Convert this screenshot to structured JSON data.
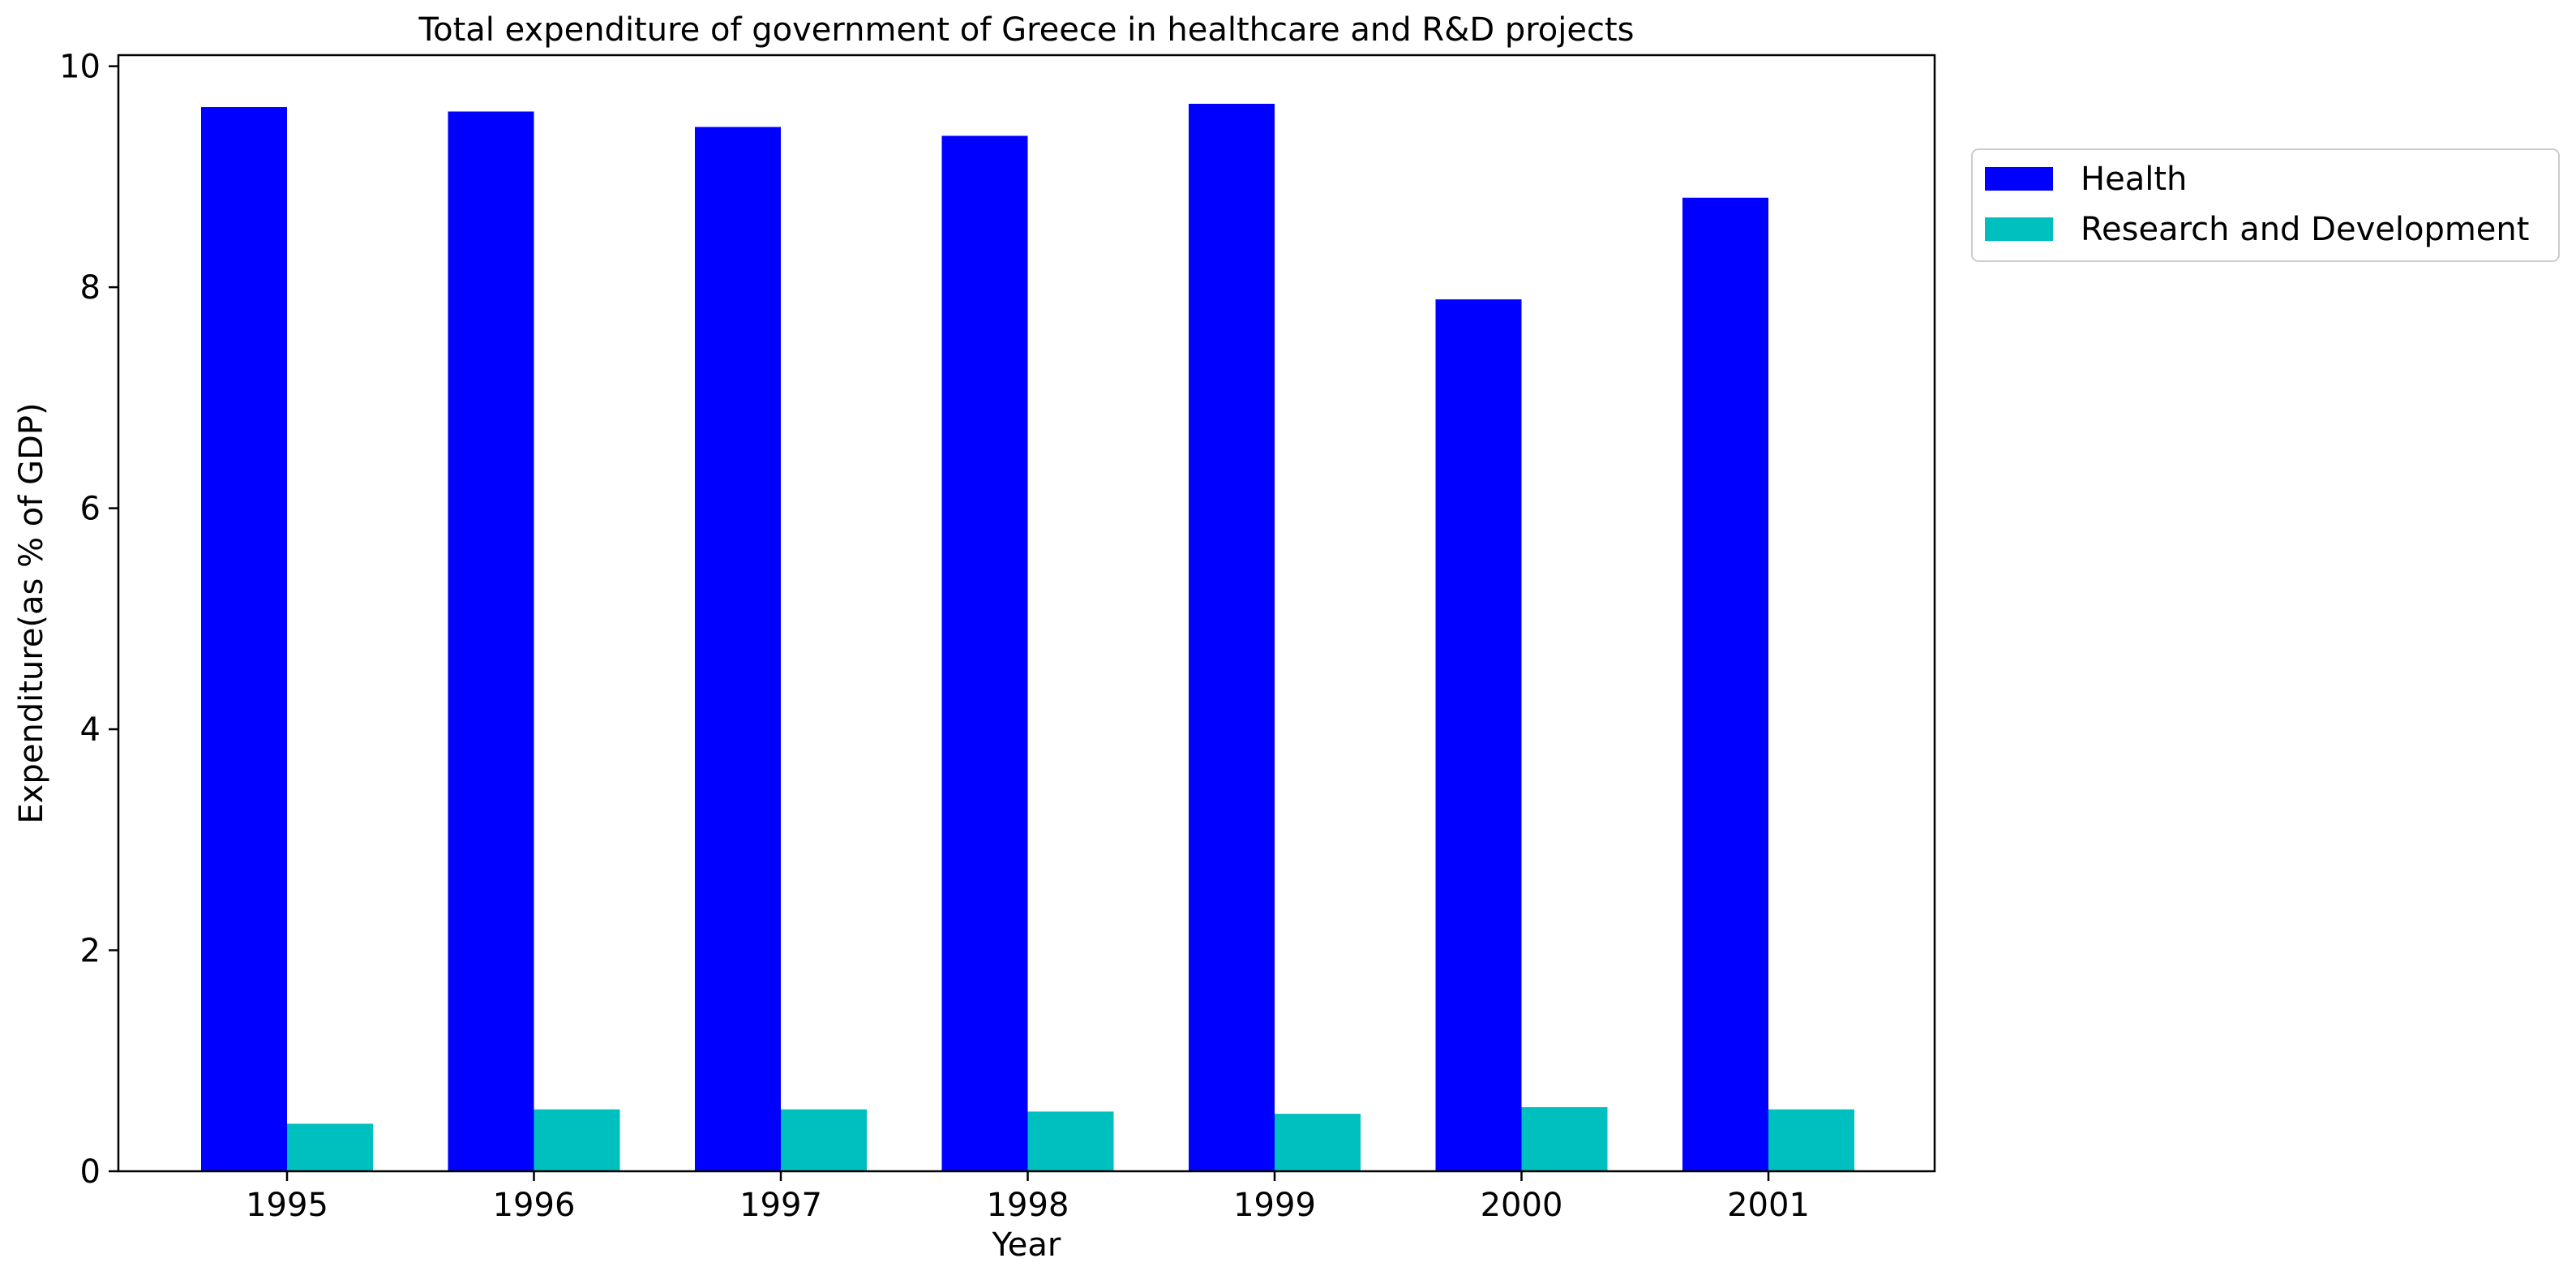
{
  "chart_data": {
    "type": "bar",
    "title": "Total expenditure of government of Greece in healthcare and R&D projects",
    "xlabel": "Year",
    "ylabel": "Expenditure(as % of GDP)",
    "categories": [
      "1995",
      "1996",
      "1997",
      "1998",
      "1999",
      "2000",
      "2001"
    ],
    "ylim": [
      0,
      10.1
    ],
    "yticks": [
      0,
      2,
      4,
      6,
      8,
      10
    ],
    "ytick_labels": [
      "0",
      "2",
      "4",
      "6",
      "8",
      "10"
    ],
    "grid": false,
    "legend_position": "outside upper right",
    "series": [
      {
        "name": "Health",
        "color": "#0000ff",
        "values": [
          9.63,
          9.59,
          9.45,
          9.37,
          9.66,
          7.89,
          8.81
        ]
      },
      {
        "name": "Research and Development",
        "color": "#00bfbf",
        "values": [
          0.43,
          0.56,
          0.56,
          0.54,
          0.52,
          0.58,
          0.56
        ]
      }
    ]
  }
}
